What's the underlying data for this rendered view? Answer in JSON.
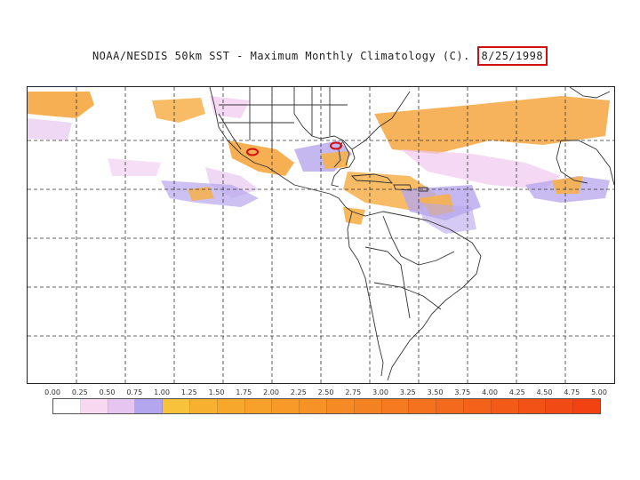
{
  "title": {
    "text": "NOAA/NESDIS 50km SST - Maximum Monthly Climatology (C).",
    "date": "8/25/1998"
  },
  "colors": {
    "highlight_box": "#d01010",
    "land_outline": "#333333",
    "grid": "#333333"
  },
  "colorbar": {
    "ticks": [
      "0.00",
      "0.25",
      "0.50",
      "0.75",
      "1.00",
      "1.25",
      "1.50",
      "1.75",
      "2.00",
      "2.25",
      "2.50",
      "2.75",
      "3.00",
      "3.25",
      "3.50",
      "3.75",
      "4.00",
      "4.25",
      "4.50",
      "4.75",
      "5.00"
    ],
    "colors": [
      "#ffffff",
      "#f7d8f0",
      "#e6c6f0",
      "#b3a6ee",
      "#f8c23a",
      "#f8b030",
      "#f7a82c",
      "#f7a02a",
      "#f79a28",
      "#f69226",
      "#f68a24",
      "#f58222",
      "#f57a20",
      "#f4721e",
      "#f46a1c",
      "#f4621a",
      "#f35a18",
      "#f35216",
      "#f24a14",
      "#f24212"
    ]
  },
  "markers": [
    {
      "name": "pacific-marker",
      "color": "#d01010"
    },
    {
      "name": "gulf-marker",
      "color": "#d01010"
    }
  ]
}
